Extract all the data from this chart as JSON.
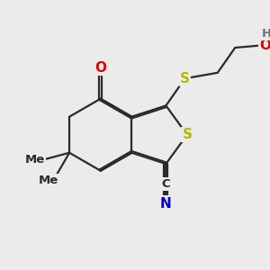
{
  "bg_color": "#ebebeb",
  "bond_color": "#2a2a2a",
  "bond_width": 1.6,
  "dbo": 0.055,
  "atom_colors": {
    "S": "#b8b800",
    "O": "#dd0000",
    "N": "#0000cc",
    "C": "#2a2a2a",
    "H": "#707070"
  },
  "fs_large": 11,
  "fs_small": 9.5
}
